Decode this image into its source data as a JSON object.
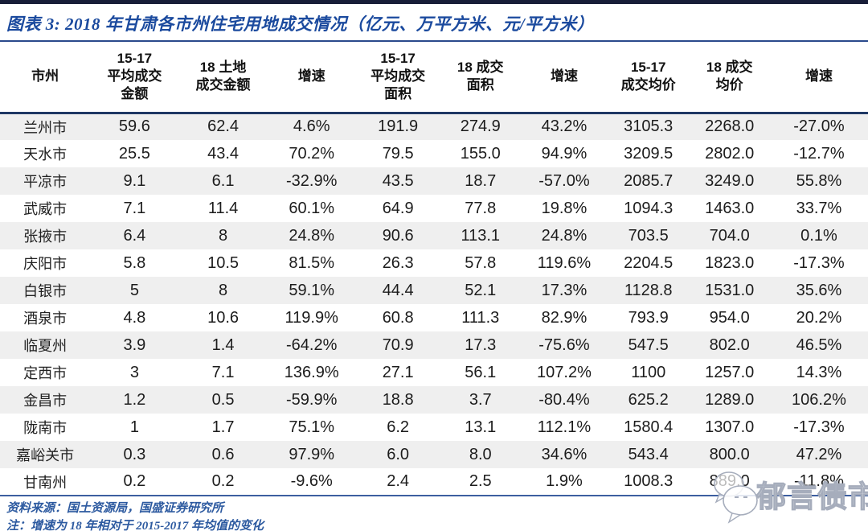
{
  "page": {
    "figure_label": "图表 3:",
    "title": "2018 年甘肃各市州住宅用地成交情况（亿元、万平方米、元/平方米）"
  },
  "chart_data": {
    "type": "table",
    "title": "2018 年甘肃各市州住宅用地成交情况",
    "units": "亿元、万平方米、元/平方米",
    "columns": [
      "市州",
      "15-17\n平均成交\n金额",
      "18 土地\n成交金额",
      "增速",
      "15-17\n平均成交\n面积",
      "18 成交\n面积",
      "增速",
      "15-17\n成交均价",
      "18 成交\n均价",
      "增速"
    ],
    "rows": [
      [
        "兰州市",
        "59.6",
        "62.4",
        "4.6%",
        "191.9",
        "274.9",
        "43.2%",
        "3105.3",
        "2268.0",
        "-27.0%"
      ],
      [
        "天水市",
        "25.5",
        "43.4",
        "70.2%",
        "79.5",
        "155.0",
        "94.9%",
        "3209.5",
        "2802.0",
        "-12.7%"
      ],
      [
        "平凉市",
        "9.1",
        "6.1",
        "-32.9%",
        "43.5",
        "18.7",
        "-57.0%",
        "2085.7",
        "3249.0",
        "55.8%"
      ],
      [
        "武威市",
        "7.1",
        "11.4",
        "60.1%",
        "64.9",
        "77.8",
        "19.8%",
        "1094.3",
        "1463.0",
        "33.7%"
      ],
      [
        "张掖市",
        "6.4",
        "8",
        "24.8%",
        "90.6",
        "113.1",
        "24.8%",
        "703.5",
        "704.0",
        "0.1%"
      ],
      [
        "庆阳市",
        "5.8",
        "10.5",
        "81.5%",
        "26.3",
        "57.8",
        "119.6%",
        "2204.5",
        "1823.0",
        "-17.3%"
      ],
      [
        "白银市",
        "5",
        "8",
        "59.1%",
        "44.4",
        "52.1",
        "17.3%",
        "1128.8",
        "1531.0",
        "35.6%"
      ],
      [
        "酒泉市",
        "4.8",
        "10.6",
        "119.9%",
        "60.8",
        "111.3",
        "82.9%",
        "793.9",
        "954.0",
        "20.2%"
      ],
      [
        "临夏州",
        "3.9",
        "1.4",
        "-64.2%",
        "70.9",
        "17.3",
        "-75.6%",
        "547.5",
        "802.0",
        "46.5%"
      ],
      [
        "定西市",
        "3",
        "7.1",
        "136.9%",
        "27.1",
        "56.1",
        "107.2%",
        "1100",
        "1257.0",
        "14.3%"
      ],
      [
        "金昌市",
        "1.2",
        "0.5",
        "-59.9%",
        "18.8",
        "3.7",
        "-80.4%",
        "625.2",
        "1289.0",
        "106.2%"
      ],
      [
        "陇南市",
        "1",
        "1.7",
        "75.1%",
        "6.2",
        "13.1",
        "112.1%",
        "1580.4",
        "1307.0",
        "-17.3%"
      ],
      [
        "嘉峪关市",
        "0.3",
        "0.6",
        "97.9%",
        "6.0",
        "8.0",
        "34.6%",
        "543.4",
        "800.0",
        "47.2%"
      ],
      [
        "甘南州",
        "0.2",
        "0.2",
        "-9.6%",
        "2.4",
        "2.5",
        "1.9%",
        "1008.3",
        "889.0",
        "-11.8%"
      ]
    ]
  },
  "footer": {
    "source": "资料来源：国土资源局，国盛证券研究所",
    "note": "注：增速为 18 年相对于 2015-2017 年均值的变化"
  },
  "watermark": {
    "text": "郁言债市"
  },
  "colors": {
    "title_blue": "#1b4a9e",
    "header_rule_navy": "#1f3864",
    "bottom_rule_blue": "#3d5fa0",
    "footer_blue": "#2d5aa0",
    "stripe_gray": "#efefef",
    "top_bar_navy": "#181d38"
  }
}
